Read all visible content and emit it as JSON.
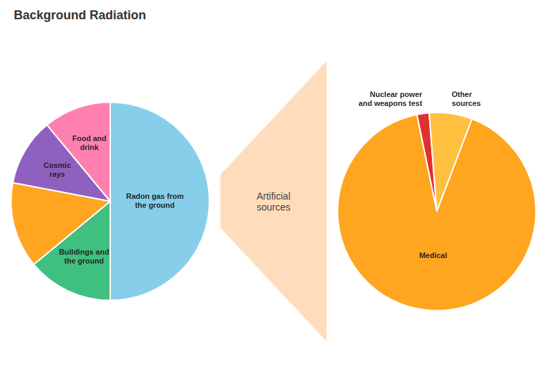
{
  "chart_data": [
    {
      "type": "pie",
      "title": "Background Radiation",
      "annotations": [
        "Artificial\nsources"
      ],
      "categories": [
        "Radon gas from\nthe ground",
        "Buildings and\nthe ground",
        null,
        "Cosmic\nrays",
        "Food and\ndrink"
      ],
      "values": [
        50,
        14,
        14,
        11,
        11
      ],
      "colors": [
        "#87ceeb",
        "#40c080",
        "#ffa520",
        "#9060c0",
        "#ff80b0"
      ]
    },
    {
      "type": "pie",
      "categories": [
        "Nuclear power\nand weapons test",
        "Other\nsources",
        "Medical"
      ],
      "values": [
        2,
        7,
        91
      ],
      "colors": [
        "#e03030",
        "#ffc040",
        "#ffa520"
      ]
    }
  ]
}
